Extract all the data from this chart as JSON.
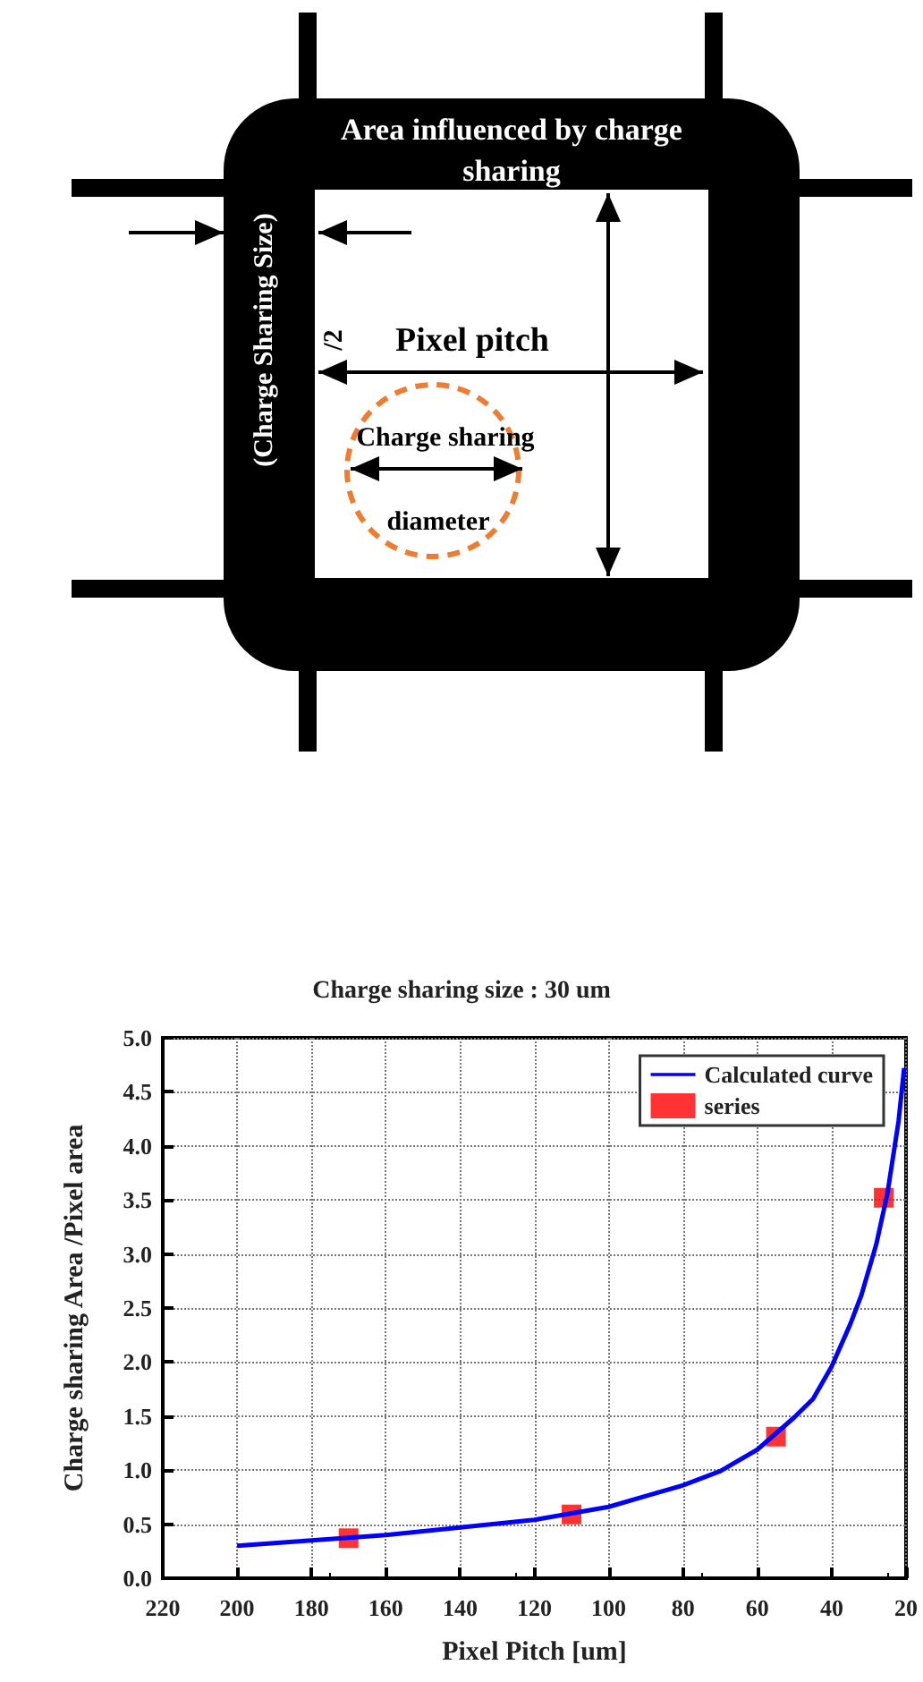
{
  "chart_data": [
    {
      "type": "other",
      "annotations": [
        "Area influenced by charge",
        "sharing",
        "(Charge Sharing Size)",
        "/2",
        "Pixel pitch",
        "Charge sharing",
        "diameter"
      ]
    },
    {
      "type": "line",
      "title": "Charge sharing size : 30 um",
      "xlabel": "Pixel Pitch [um]",
      "ylabel": "Charge sharing Area /Pixel area",
      "xlim": [
        220,
        20
      ],
      "xticks": [
        220,
        200,
        180,
        160,
        140,
        120,
        100,
        80,
        60,
        40,
        20
      ],
      "ylim": [
        0,
        5
      ],
      "yticks": [
        {
          "value": 0,
          "label": "0.0"
        },
        0.5,
        {
          "value": 1,
          "label": "1.0"
        },
        1.5,
        {
          "value": 2,
          "label": "2.0"
        },
        2.5,
        {
          "value": 3,
          "label": "3.0"
        },
        3.5,
        {
          "value": 4,
          "label": "4.0"
        },
        4.5,
        {
          "value": 5,
          "label": "5.0"
        }
      ],
      "grid": true,
      "legend": "top right",
      "series": [
        {
          "name": "Calculated curve",
          "type": "line",
          "color": "#0000ff",
          "marker": "none",
          "x": [
            200,
            180,
            160,
            140,
            120,
            100,
            90,
            80,
            70,
            60,
            50,
            45,
            40,
            35,
            32,
            28,
            25,
            22,
            20.5
          ],
          "values": [
            0.3,
            0.35,
            0.4,
            0.47,
            0.54,
            0.66,
            0.76,
            0.86,
            0.99,
            1.19,
            1.49,
            1.66,
            1.96,
            2.35,
            2.62,
            3.09,
            3.56,
            4.23,
            4.72
          ]
        },
        {
          "name": "series",
          "type": "scatter",
          "color": "#ff0000",
          "marker": "square",
          "x": [
            170,
            110,
            55,
            26
          ],
          "values": [
            0.37,
            0.59,
            1.31,
            3.52
          ]
        }
      ]
    }
  ]
}
